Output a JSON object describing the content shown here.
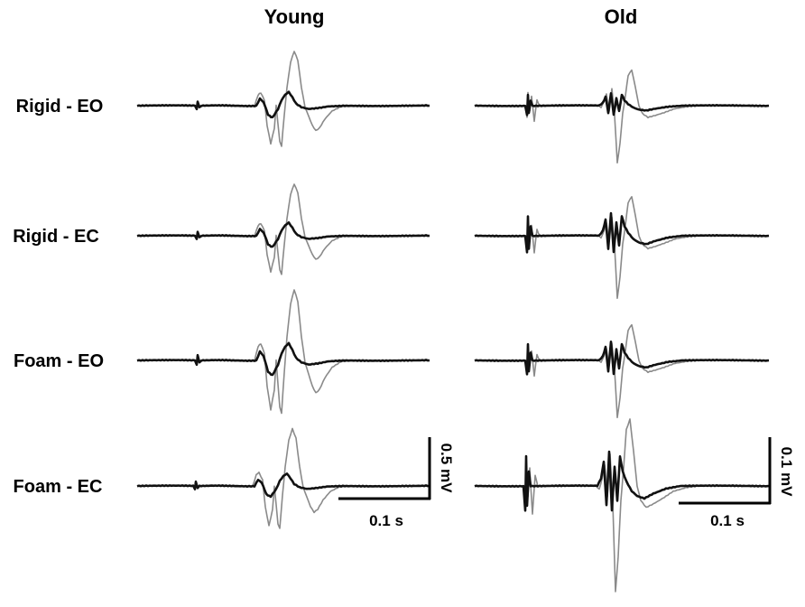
{
  "chart_data": {
    "type": "line",
    "columns": [
      "Young",
      "Old"
    ],
    "rows": [
      "Rigid - EO",
      "Rigid - EC",
      "Foam - EO",
      "Foam - EC"
    ],
    "scale_bars": [
      {
        "column": "Young",
        "amplitude_label": "0.5 mV",
        "time_label": "0.1 s",
        "amplitude": 0.5,
        "time": 0.1
      },
      {
        "column": "Old",
        "amplitude_label": "0.1 mV",
        "time_label": "0.1 s",
        "amplitude": 0.1,
        "time": 0.1
      }
    ],
    "colors": {
      "gray_trace": "#8a8a8a",
      "black_trace": "#111111"
    },
    "grid": false,
    "legend": "none"
  }
}
